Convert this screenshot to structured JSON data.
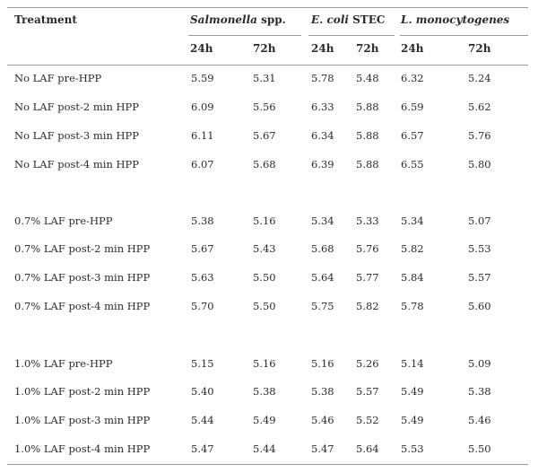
{
  "header": {
    "treatment": "Treatment",
    "groups": [
      {
        "organism": "Salmonella",
        "suffix": " spp."
      },
      {
        "organism": "E. coli",
        "suffix": " STEC"
      },
      {
        "organism": "L. monocytogenes",
        "suffix": ""
      }
    ],
    "time_labels": [
      "24h",
      "72h",
      "24h",
      "72h",
      "24h",
      "72h"
    ]
  },
  "rows": [
    {
      "label": "No LAF pre-HPP",
      "values": [
        "5.59",
        "5.31",
        "5.78",
        "5.48",
        "6.32",
        "5.24"
      ]
    },
    {
      "label": "No LAF post-2 min HPP",
      "values": [
        "6.09",
        "5.56",
        "6.33",
        "5.88",
        "6.59",
        "5.62"
      ]
    },
    {
      "label": "No LAF post-3 min HPP",
      "values": [
        "6.11",
        "5.67",
        "6.34",
        "5.88",
        "6.57",
        "5.76"
      ]
    },
    {
      "label": "No LAF post-4 min HPP",
      "values": [
        "6.07",
        "5.68",
        "6.39",
        "5.88",
        "6.55",
        "5.80"
      ]
    },
    {
      "label": "0.7% LAF pre-HPP",
      "values": [
        "5.38",
        "5.16",
        "5.34",
        "5.33",
        "5.34",
        "5.07"
      ]
    },
    {
      "label": "0.7% LAF post-2 min HPP",
      "values": [
        "5.67",
        "5.43",
        "5.68",
        "5.76",
        "5.82",
        "5.53"
      ]
    },
    {
      "label": "0.7% LAF post-3 min HPP",
      "values": [
        "5.63",
        "5.50",
        "5.64",
        "5.77",
        "5.84",
        "5.57"
      ]
    },
    {
      "label": "0.7% LAF post-4 min HPP",
      "values": [
        "5.70",
        "5.50",
        "5.75",
        "5.82",
        "5.78",
        "5.60"
      ]
    },
    {
      "label": "1.0% LAF pre-HPP",
      "values": [
        "5.15",
        "5.16",
        "5.16",
        "5.26",
        "5.14",
        "5.09"
      ]
    },
    {
      "label": "1.0% LAF post-2 min HPP",
      "values": [
        "5.40",
        "5.38",
        "5.38",
        "5.57",
        "5.49",
        "5.38"
      ]
    },
    {
      "label": "1.0% LAF post-3 min HPP",
      "values": [
        "5.44",
        "5.49",
        "5.46",
        "5.52",
        "5.49",
        "5.46"
      ]
    },
    {
      "label": "1.0% LAF post-4 min HPP",
      "values": [
        "5.47",
        "5.44",
        "5.47",
        "5.64",
        "5.53",
        "5.50"
      ]
    }
  ]
}
